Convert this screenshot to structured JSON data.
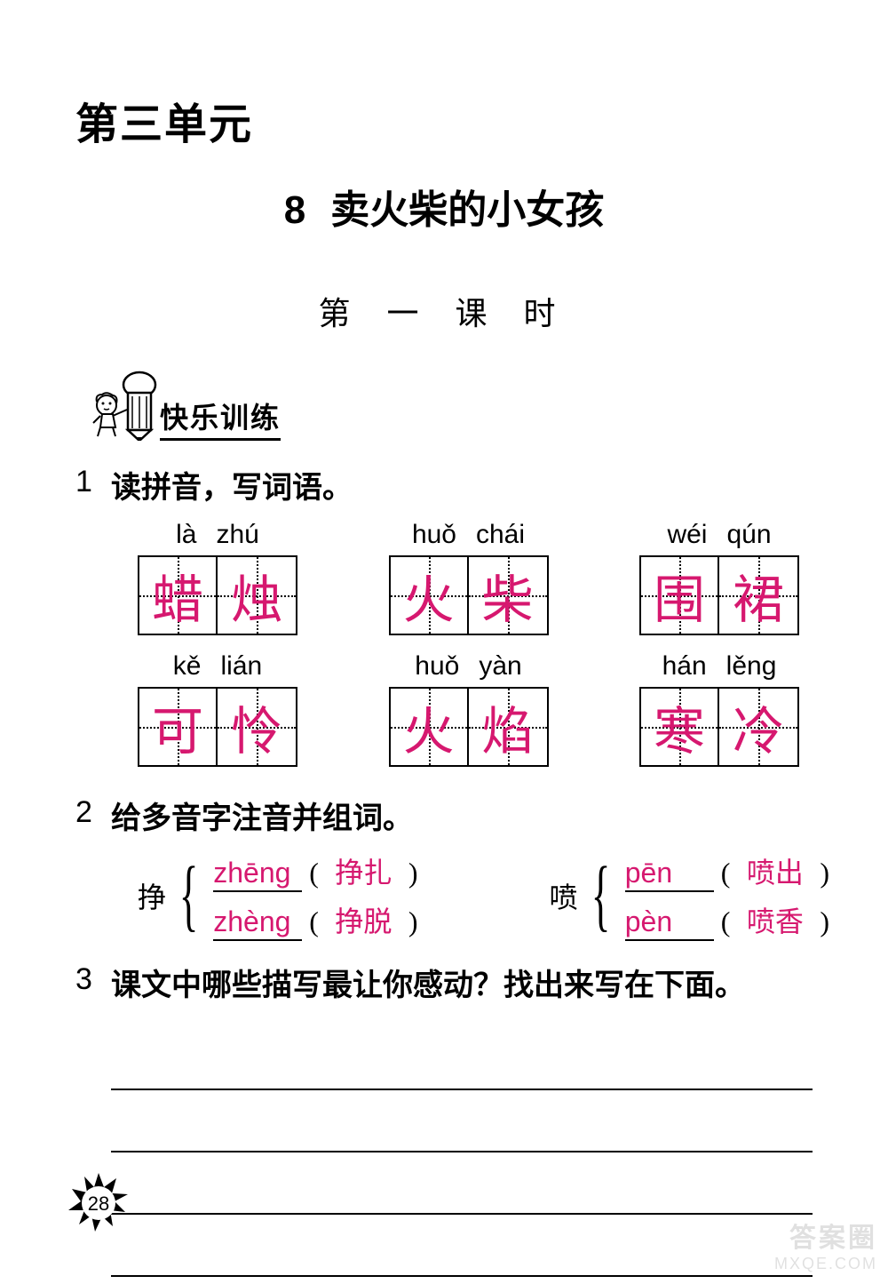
{
  "colors": {
    "answer": "#d6186f",
    "text": "#000000",
    "bg": "#ffffff"
  },
  "unit_title": "第三单元",
  "lesson": {
    "number": "8",
    "title": "卖火柴的小女孩"
  },
  "period_title": "第 一 课 时",
  "section_label": "快乐训练",
  "exercises": {
    "e1": {
      "num": "1",
      "title": "读拼音，写词语。",
      "rows": [
        [
          {
            "p1": "là",
            "p2": "zhú",
            "c1": "蜡",
            "c2": "烛"
          },
          {
            "p1": "huǒ",
            "p2": "chái",
            "c1": "火",
            "c2": "柴"
          },
          {
            "p1": "wéi",
            "p2": "qún",
            "c1": "围",
            "c2": "裙"
          }
        ],
        [
          {
            "p1": "kě",
            "p2": "lián",
            "c1": "可",
            "c2": "怜"
          },
          {
            "p1": "huǒ",
            "p2": "yàn",
            "c1": "火",
            "c2": "焰"
          },
          {
            "p1": "hán",
            "p2": "lěng",
            "c1": "寒",
            "c2": "冷"
          }
        ]
      ]
    },
    "e2": {
      "num": "2",
      "title": "给多音字注音并组词。",
      "groups": [
        {
          "char": "挣",
          "readings": [
            {
              "pinyin": "zhēng",
              "word": "挣扎"
            },
            {
              "pinyin": "zhèng",
              "word": "挣脱"
            }
          ]
        },
        {
          "char": "喷",
          "readings": [
            {
              "pinyin": "pēn",
              "word": "喷出"
            },
            {
              "pinyin": "pèn",
              "word": "喷香"
            }
          ]
        }
      ]
    },
    "e3": {
      "num": "3",
      "title": "课文中哪些描写最让你感动？找出来写在下面。",
      "line_count": 4
    }
  },
  "page_number": "28",
  "watermark": {
    "line1": "答案圈",
    "line2": "MXQE.COM"
  }
}
